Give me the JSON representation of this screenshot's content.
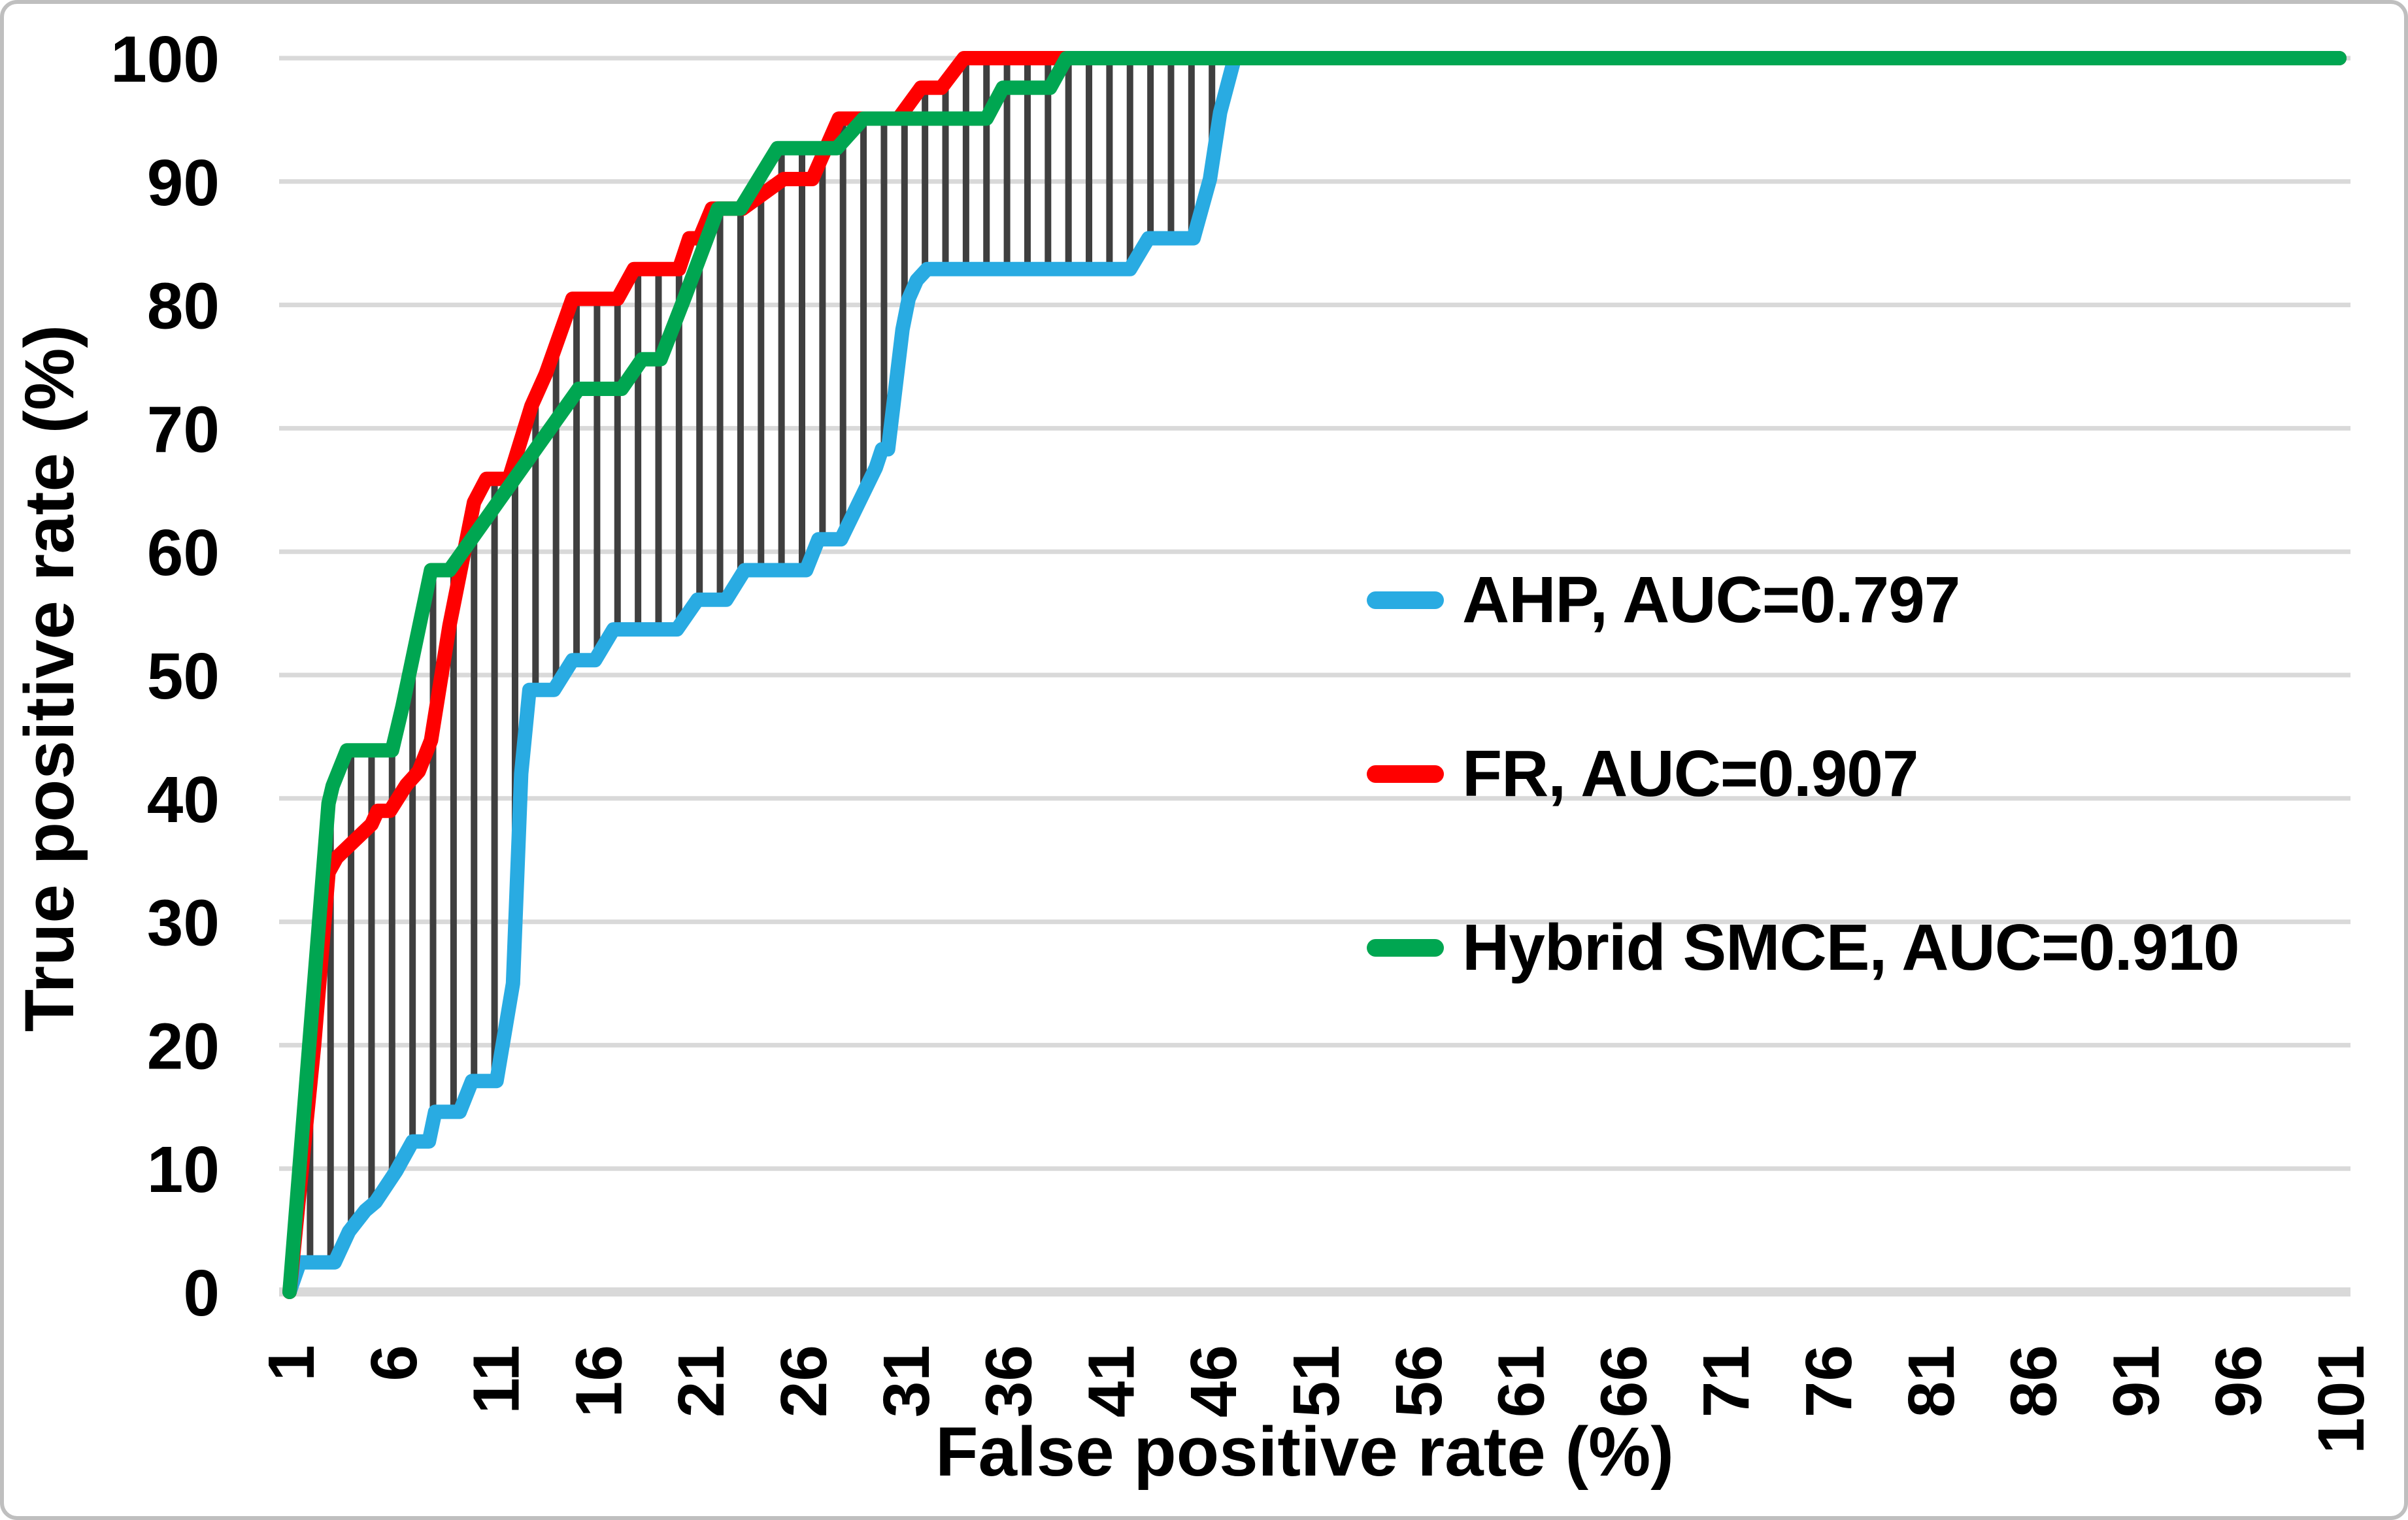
{
  "chart_data": {
    "type": "line",
    "title": "",
    "xlabel": "False positive rate (%)",
    "ylabel": "True positive rate (%)",
    "x_ticks": [
      1,
      6,
      11,
      16,
      21,
      26,
      31,
      36,
      41,
      46,
      51,
      56,
      61,
      66,
      71,
      76,
      81,
      86,
      91,
      96,
      101
    ],
    "y_ticks": [
      0,
      10,
      20,
      30,
      40,
      50,
      60,
      70,
      80,
      90,
      100
    ],
    "xlim": [
      1,
      101
    ],
    "ylim": [
      0,
      100
    ],
    "grid": "horizontal gridlines only",
    "gridline_color": "#d9d9d9",
    "axis_line_color": "#d9d9d9",
    "tick_label_color": "#000000",
    "legend_position": "center-right, no box",
    "hatch": {
      "description": "vertical hatching between AHP curve and upper envelope of FR / Hybrid SMCE curves",
      "color": "#3f3f3f",
      "x_start": 2,
      "x_end": 46,
      "step": 1
    },
    "series": [
      {
        "name": "AHP, AUC=0.797",
        "auc": "0.797",
        "color": "#29abe2",
        "points": [
          [
            1,
            0
          ],
          [
            1.5,
            2.4
          ],
          [
            3.2,
            2.4
          ],
          [
            3.9,
            4.9
          ],
          [
            4.7,
            6.6
          ],
          [
            5.2,
            7.3
          ],
          [
            6.2,
            9.8
          ],
          [
            7.0,
            12.2
          ],
          [
            7.8,
            12.2
          ],
          [
            8.1,
            14.6
          ],
          [
            9.3,
            14.6
          ],
          [
            9.9,
            17.1
          ],
          [
            11.1,
            17.1
          ],
          [
            11.9,
            25.0
          ],
          [
            12.3,
            42.0
          ],
          [
            12.7,
            48.8
          ],
          [
            13.9,
            48.8
          ],
          [
            14.8,
            51.2
          ],
          [
            15.9,
            51.2
          ],
          [
            16.8,
            53.7
          ],
          [
            19.9,
            53.7
          ],
          [
            20.9,
            56.1
          ],
          [
            22.3,
            56.1
          ],
          [
            23.2,
            58.5
          ],
          [
            26.2,
            58.5
          ],
          [
            26.8,
            61.0
          ],
          [
            27.9,
            61.0
          ],
          [
            29.6,
            66.8
          ],
          [
            29.9,
            68.3
          ],
          [
            30.2,
            68.3
          ],
          [
            30.9,
            78.0
          ],
          [
            31.2,
            80.5
          ],
          [
            31.6,
            82.0
          ],
          [
            32.1,
            82.9
          ],
          [
            42.0,
            82.9
          ],
          [
            42.9,
            85.4
          ],
          [
            45.1,
            85.4
          ],
          [
            45.9,
            90.2
          ],
          [
            46.4,
            95.6
          ],
          [
            47.1,
            100
          ],
          [
            101,
            100
          ]
        ]
      },
      {
        "name": "FR, AUC=0.907",
        "auc": "0.907",
        "color": "#ff0000",
        "points": [
          [
            1,
            0
          ],
          [
            2.2,
            20.0
          ],
          [
            2.9,
            34.0
          ],
          [
            3.3,
            35.2
          ],
          [
            5.0,
            37.9
          ],
          [
            5.3,
            39.0
          ],
          [
            5.9,
            39.0
          ],
          [
            6.7,
            41.1
          ],
          [
            7.3,
            42.2
          ],
          [
            7.9,
            44.7
          ],
          [
            8.8,
            54.0
          ],
          [
            10.0,
            64.0
          ],
          [
            10.6,
            65.9
          ],
          [
            11.7,
            65.9
          ],
          [
            12.8,
            71.8
          ],
          [
            13.5,
            74.4
          ],
          [
            14.8,
            80.5
          ],
          [
            17.0,
            80.5
          ],
          [
            17.8,
            82.9
          ],
          [
            20.0,
            82.9
          ],
          [
            20.5,
            85.4
          ],
          [
            21.0,
            85.4
          ],
          [
            21.6,
            87.8
          ],
          [
            23.1,
            87.8
          ],
          [
            25.1,
            90.2
          ],
          [
            26.5,
            90.2
          ],
          [
            27.8,
            95.1
          ],
          [
            30.7,
            95.1
          ],
          [
            31.8,
            97.6
          ],
          [
            32.8,
            97.6
          ],
          [
            33.9,
            100
          ],
          [
            101,
            100
          ]
        ]
      },
      {
        "name": "Hybrid SMCE, AUC=0.910",
        "auc": "0.910",
        "color": "#00a651",
        "points": [
          [
            1,
            0
          ],
          [
            2.9,
            39.6
          ],
          [
            3.1,
            41.0
          ],
          [
            3.8,
            43.9
          ],
          [
            6.0,
            43.9
          ],
          [
            6.5,
            47.4
          ],
          [
            7.9,
            58.5
          ],
          [
            8.8,
            58.5
          ],
          [
            15.1,
            73.2
          ],
          [
            17.2,
            73.2
          ],
          [
            18.2,
            75.6
          ],
          [
            19.1,
            75.6
          ],
          [
            20.3,
            80.7
          ],
          [
            21.5,
            86.0
          ],
          [
            21.9,
            87.8
          ],
          [
            23.0,
            87.8
          ],
          [
            24.8,
            92.7
          ],
          [
            27.7,
            92.7
          ],
          [
            29.0,
            95.1
          ],
          [
            35.0,
            95.1
          ],
          [
            35.8,
            97.6
          ],
          [
            38.1,
            97.6
          ],
          [
            38.9,
            100
          ],
          [
            101,
            100
          ]
        ]
      }
    ]
  }
}
